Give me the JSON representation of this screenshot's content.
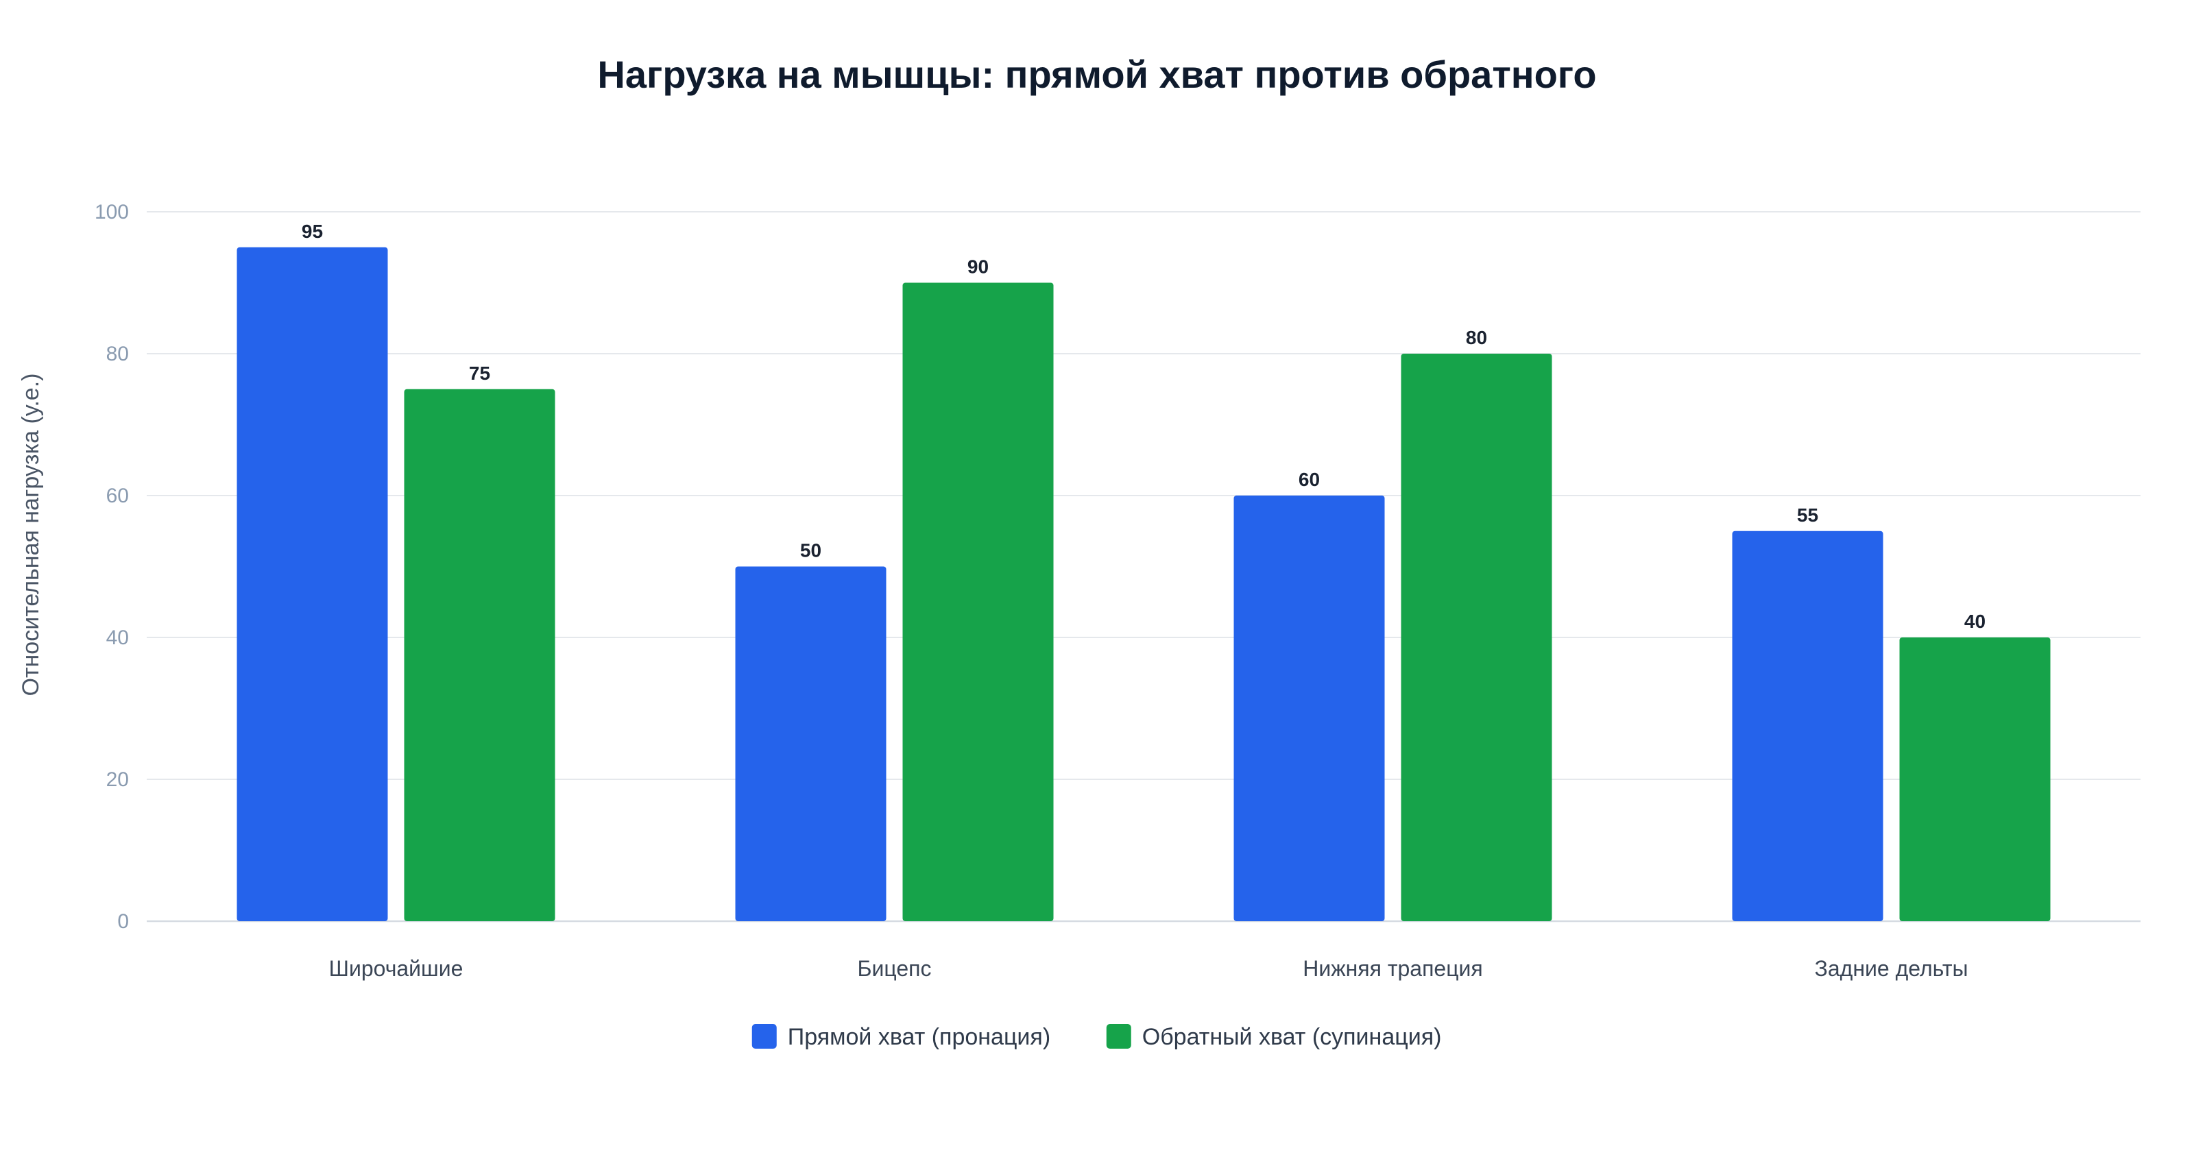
{
  "chart_data": {
    "type": "bar",
    "title": "Нагрузка на мышцы: прямой хват против обратного",
    "xlabel": "",
    "ylabel": "Относительная нагрузка (у.е.)",
    "categories": [
      "Широчайшие",
      "Бицепс",
      "Нижняя трапеция",
      "Задние дельты"
    ],
    "series": [
      {
        "name": "Прямой хват (пронация)",
        "color": "#2563eb",
        "values": [
          95,
          50,
          60,
          55
        ]
      },
      {
        "name": "Обратный хват (супинация)",
        "color": "#16a34a",
        "values": [
          75,
          90,
          80,
          40
        ]
      }
    ],
    "ylim": [
      0,
      100
    ],
    "yticks": [
      0,
      20,
      40,
      60,
      80,
      100
    ],
    "grid": true,
    "legend_position": "bottom-center",
    "data_labels": true
  }
}
